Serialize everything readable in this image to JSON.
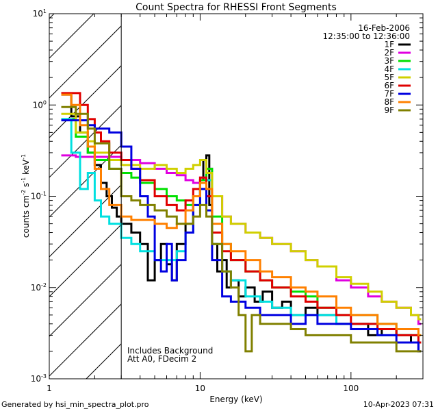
{
  "chart_data": {
    "type": "line",
    "title": "Count Spectra for RHESSI Front Segments",
    "xlabel": "Energy (keV)",
    "ylabel_main": "counts cm",
    "ylabel_exp1": "-2",
    "ylabel_mid": " s",
    "ylabel_exp2": "-1",
    "ylabel_tail": " keV",
    "ylabel_exp3": "-1",
    "xscale": "log",
    "yscale": "log",
    "xlim": [
      1,
      300
    ],
    "ylim": [
      0.001,
      10
    ],
    "xticks": [
      {
        "v": 1,
        "t": "1"
      },
      {
        "v": 10,
        "t": "10"
      },
      {
        "v": 100,
        "t": "100"
      }
    ],
    "yticks": [
      {
        "v": 10,
        "b": "10",
        "e": "1"
      },
      {
        "v": 1,
        "b": "10",
        "e": "0"
      },
      {
        "v": 0.1,
        "b": "10",
        "e": "-1"
      },
      {
        "v": 0.01,
        "b": "10",
        "e": "-2"
      },
      {
        "v": 0.001,
        "b": "10",
        "e": "-3"
      }
    ],
    "attenuated_region_max_kev": 3,
    "date": "16-Feb-2006",
    "time_range": "12:35:00 to 12:36:00",
    "notes": [
      "Includes Background",
      "Att A0, FDecim 2"
    ],
    "series": [
      {
        "name": "1F",
        "color": "#000000",
        "points": [
          [
            1.2,
            1.3
          ],
          [
            1.4,
            0.75
          ],
          [
            1.6,
            0.5
          ],
          [
            1.8,
            0.3
          ],
          [
            2.0,
            0.22
          ],
          [
            2.2,
            0.14
          ],
          [
            2.4,
            0.1
          ],
          [
            2.6,
            0.075
          ],
          [
            2.8,
            0.06
          ],
          [
            3.0,
            0.05
          ],
          [
            3.5,
            0.04
          ],
          [
            4.0,
            0.03
          ],
          [
            4.5,
            0.012
          ],
          [
            5.0,
            0.02
          ],
          [
            5.5,
            0.03
          ],
          [
            6.0,
            0.018
          ],
          [
            6.5,
            0.012
          ],
          [
            7.0,
            0.03
          ],
          [
            8.0,
            0.05
          ],
          [
            9.0,
            0.1
          ],
          [
            10.0,
            0.15
          ],
          [
            10.5,
            0.25
          ],
          [
            11.0,
            0.28
          ],
          [
            11.5,
            0.08
          ],
          [
            12.0,
            0.03
          ],
          [
            13,
            0.015
          ],
          [
            14,
            0.02
          ],
          [
            15,
            0.01
          ],
          [
            16,
            0.012
          ],
          [
            18,
            0.008
          ],
          [
            20,
            0.01
          ],
          [
            23,
            0.007
          ],
          [
            26,
            0.009
          ],
          [
            30,
            0.006
          ],
          [
            35,
            0.007
          ],
          [
            40,
            0.005
          ],
          [
            50,
            0.006
          ],
          [
            60,
            0.005
          ],
          [
            80,
            0.004
          ],
          [
            100,
            0.004
          ],
          [
            130,
            0.003
          ],
          [
            160,
            0.0035
          ],
          [
            200,
            0.003
          ],
          [
            250,
            0.0025
          ],
          [
            280,
            0.002
          ]
        ]
      },
      {
        "name": "2F",
        "color": "#e000e0",
        "points": [
          [
            1.2,
            0.28
          ],
          [
            1.5,
            0.27
          ],
          [
            2.0,
            0.27
          ],
          [
            3.0,
            0.25
          ],
          [
            4.0,
            0.23
          ],
          [
            5.0,
            0.2
          ],
          [
            6.0,
            0.18
          ],
          [
            7.0,
            0.17
          ],
          [
            8.0,
            0.15
          ],
          [
            9.0,
            0.14
          ],
          [
            10.0,
            0.16
          ],
          [
            11.0,
            0.2
          ],
          [
            12.0,
            0.1
          ],
          [
            14,
            0.06
          ],
          [
            16,
            0.05
          ],
          [
            20,
            0.04
          ],
          [
            25,
            0.035
          ],
          [
            30,
            0.03
          ],
          [
            40,
            0.025
          ],
          [
            50,
            0.02
          ],
          [
            60,
            0.017
          ],
          [
            80,
            0.012
          ],
          [
            100,
            0.01
          ],
          [
            130,
            0.008
          ],
          [
            160,
            0.007
          ],
          [
            200,
            0.006
          ],
          [
            250,
            0.005
          ],
          [
            280,
            0.004
          ]
        ]
      },
      {
        "name": "3F",
        "color": "#00e000",
        "points": [
          [
            1.2,
            0.7
          ],
          [
            1.5,
            0.45
          ],
          [
            1.8,
            0.3
          ],
          [
            2.0,
            0.25
          ],
          [
            2.5,
            0.2
          ],
          [
            3.0,
            0.18
          ],
          [
            3.5,
            0.16
          ],
          [
            4.0,
            0.14
          ],
          [
            5.0,
            0.12
          ],
          [
            6.0,
            0.1
          ],
          [
            7.0,
            0.09
          ],
          [
            8.0,
            0.08
          ],
          [
            9.0,
            0.1
          ],
          [
            10.0,
            0.15
          ],
          [
            11.0,
            0.2
          ],
          [
            12.0,
            0.06
          ],
          [
            14,
            0.03
          ],
          [
            16,
            0.02
          ],
          [
            20,
            0.015
          ],
          [
            25,
            0.012
          ],
          [
            30,
            0.01
          ],
          [
            40,
            0.009
          ],
          [
            50,
            0.008
          ],
          [
            60,
            0.006
          ],
          [
            80,
            0.005
          ],
          [
            100,
            0.005
          ],
          [
            150,
            0.004
          ],
          [
            200,
            0.003
          ],
          [
            280,
            0.003
          ]
        ]
      },
      {
        "name": "4F",
        "color": "#00e0e0",
        "points": [
          [
            1.2,
            0.7
          ],
          [
            1.4,
            0.3
          ],
          [
            1.6,
            0.12
          ],
          [
            1.8,
            0.18
          ],
          [
            2.0,
            0.09
          ],
          [
            2.2,
            0.06
          ],
          [
            2.5,
            0.05
          ],
          [
            3.0,
            0.035
          ],
          [
            3.5,
            0.03
          ],
          [
            4.0,
            0.025
          ],
          [
            5.0,
            0.02
          ],
          [
            6.0,
            0.02
          ],
          [
            7.0,
            0.025
          ],
          [
            8.0,
            0.04
          ],
          [
            9.0,
            0.08
          ],
          [
            10.0,
            0.12
          ],
          [
            11.0,
            0.15
          ],
          [
            12.0,
            0.03
          ],
          [
            14,
            0.015
          ],
          [
            16,
            0.012
          ],
          [
            20,
            0.008
          ],
          [
            25,
            0.007
          ],
          [
            30,
            0.006
          ],
          [
            40,
            0.005
          ],
          [
            60,
            0.005
          ],
          [
            80,
            0.004
          ],
          [
            100,
            0.004
          ],
          [
            150,
            0.003
          ],
          [
            200,
            0.003
          ],
          [
            280,
            0.0025
          ]
        ]
      },
      {
        "name": "5F",
        "color": "#d0d000",
        "points": [
          [
            1.2,
            0.8
          ],
          [
            1.5,
            0.5
          ],
          [
            1.8,
            0.4
          ],
          [
            2.0,
            0.3
          ],
          [
            2.5,
            0.25
          ],
          [
            3.0,
            0.22
          ],
          [
            4.0,
            0.2
          ],
          [
            5.0,
            0.22
          ],
          [
            6.0,
            0.2
          ],
          [
            7.0,
            0.18
          ],
          [
            8.0,
            0.2
          ],
          [
            9.0,
            0.22
          ],
          [
            10.0,
            0.25
          ],
          [
            11.0,
            0.18
          ],
          [
            12.0,
            0.1
          ],
          [
            14,
            0.06
          ],
          [
            16,
            0.05
          ],
          [
            20,
            0.04
          ],
          [
            25,
            0.035
          ],
          [
            30,
            0.03
          ],
          [
            40,
            0.025
          ],
          [
            50,
            0.02
          ],
          [
            60,
            0.017
          ],
          [
            80,
            0.013
          ],
          [
            100,
            0.011
          ],
          [
            130,
            0.009
          ],
          [
            160,
            0.007
          ],
          [
            200,
            0.006
          ],
          [
            250,
            0.005
          ],
          [
            280,
            0.0045
          ]
        ]
      },
      {
        "name": "6F",
        "color": "#e00000",
        "points": [
          [
            1.2,
            1.35
          ],
          [
            1.4,
            1.35
          ],
          [
            1.6,
            1.0
          ],
          [
            1.8,
            0.7
          ],
          [
            2.0,
            0.5
          ],
          [
            2.2,
            0.4
          ],
          [
            2.5,
            0.3
          ],
          [
            3.0,
            0.25
          ],
          [
            3.5,
            0.2
          ],
          [
            4.0,
            0.15
          ],
          [
            5.0,
            0.1
          ],
          [
            6.0,
            0.08
          ],
          [
            7.0,
            0.07
          ],
          [
            8.0,
            0.09
          ],
          [
            9.0,
            0.12
          ],
          [
            10.0,
            0.16
          ],
          [
            11.0,
            0.1
          ],
          [
            12.0,
            0.04
          ],
          [
            14,
            0.025
          ],
          [
            16,
            0.02
          ],
          [
            20,
            0.015
          ],
          [
            25,
            0.012
          ],
          [
            30,
            0.01
          ],
          [
            40,
            0.008
          ],
          [
            50,
            0.007
          ],
          [
            60,
            0.006
          ],
          [
            80,
            0.005
          ],
          [
            100,
            0.004
          ],
          [
            150,
            0.0035
          ],
          [
            200,
            0.003
          ],
          [
            280,
            0.0025
          ]
        ]
      },
      {
        "name": "7F",
        "color": "#0000e0",
        "points": [
          [
            1.2,
            0.68
          ],
          [
            1.5,
            0.68
          ],
          [
            1.8,
            0.6
          ],
          [
            2.0,
            0.55
          ],
          [
            2.5,
            0.5
          ],
          [
            3.0,
            0.35
          ],
          [
            3.5,
            0.2
          ],
          [
            4.0,
            0.1
          ],
          [
            4.5,
            0.06
          ],
          [
            5.0,
            0.02
          ],
          [
            5.5,
            0.015
          ],
          [
            6.0,
            0.03
          ],
          [
            6.5,
            0.012
          ],
          [
            7.0,
            0.02
          ],
          [
            8.0,
            0.04
          ],
          [
            9.0,
            0.08
          ],
          [
            10.0,
            0.12
          ],
          [
            11.0,
            0.07
          ],
          [
            12.0,
            0.02
          ],
          [
            14,
            0.008
          ],
          [
            16,
            0.007
          ],
          [
            20,
            0.006
          ],
          [
            25,
            0.005
          ],
          [
            30,
            0.005
          ],
          [
            40,
            0.004
          ],
          [
            50,
            0.005
          ],
          [
            60,
            0.004
          ],
          [
            80,
            0.004
          ],
          [
            100,
            0.0035
          ],
          [
            150,
            0.003
          ],
          [
            200,
            0.0025
          ],
          [
            280,
            0.002
          ]
        ]
      },
      {
        "name": "8F",
        "color": "#ff8000",
        "points": [
          [
            1.2,
            1.3
          ],
          [
            1.4,
            1.0
          ],
          [
            1.6,
            0.6
          ],
          [
            1.8,
            0.35
          ],
          [
            2.0,
            0.2
          ],
          [
            2.2,
            0.12
          ],
          [
            2.5,
            0.08
          ],
          [
            3.0,
            0.06
          ],
          [
            3.5,
            0.055
          ],
          [
            4.0,
            0.055
          ],
          [
            5.0,
            0.05
          ],
          [
            6.0,
            0.045
          ],
          [
            7.0,
            0.05
          ],
          [
            8.0,
            0.07
          ],
          [
            9.0,
            0.1
          ],
          [
            10.0,
            0.14
          ],
          [
            11.0,
            0.12
          ],
          [
            12.0,
            0.05
          ],
          [
            14,
            0.03
          ],
          [
            16,
            0.025
          ],
          [
            20,
            0.02
          ],
          [
            25,
            0.015
          ],
          [
            30,
            0.013
          ],
          [
            40,
            0.01
          ],
          [
            50,
            0.009
          ],
          [
            60,
            0.008
          ],
          [
            80,
            0.006
          ],
          [
            100,
            0.005
          ],
          [
            150,
            0.004
          ],
          [
            200,
            0.0035
          ],
          [
            280,
            0.003
          ]
        ]
      },
      {
        "name": "9F",
        "color": "#808000",
        "points": [
          [
            1.2,
            0.95
          ],
          [
            1.5,
            0.8
          ],
          [
            1.8,
            0.55
          ],
          [
            2.0,
            0.38
          ],
          [
            2.5,
            0.2
          ],
          [
            3.0,
            0.1
          ],
          [
            3.5,
            0.09
          ],
          [
            4.0,
            0.08
          ],
          [
            5.0,
            0.07
          ],
          [
            6.0,
            0.06
          ],
          [
            7.0,
            0.05
          ],
          [
            8.0,
            0.05
          ],
          [
            9.0,
            0.06
          ],
          [
            10.0,
            0.08
          ],
          [
            11.0,
            0.06
          ],
          [
            12.0,
            0.03
          ],
          [
            14,
            0.015
          ],
          [
            16,
            0.01
          ],
          [
            18,
            0.005
          ],
          [
            20,
            0.002
          ],
          [
            22,
            0.005
          ],
          [
            25,
            0.004
          ],
          [
            30,
            0.004
          ],
          [
            40,
            0.0035
          ],
          [
            50,
            0.003
          ],
          [
            60,
            0.003
          ],
          [
            80,
            0.003
          ],
          [
            100,
            0.0025
          ],
          [
            150,
            0.0025
          ],
          [
            200,
            0.002
          ],
          [
            280,
            0.002
          ]
        ]
      }
    ]
  },
  "footer": {
    "generated": "Generated by hsi_min_spectra_plot.pro",
    "timestamp": "10-Apr-2023 07:31"
  }
}
